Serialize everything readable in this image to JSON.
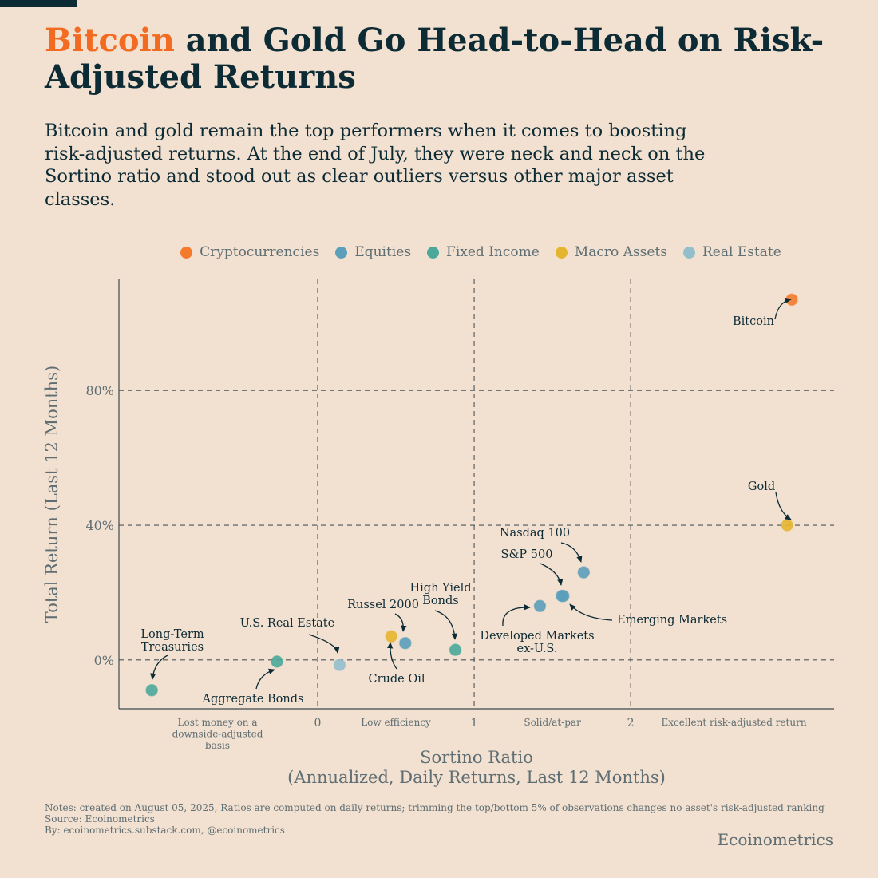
{
  "header": {
    "title_highlight": "Bitcoin",
    "title_rest": " and Gold Go Head-to-Head on Risk-Adjusted Returns",
    "subtitle": "Bitcoin and gold remain the top performers when it comes to boosting risk-adjusted returns. At the end of July, they were neck and neck on the Sortino ratio and stood out as clear outliers versus other major asset classes."
  },
  "legend": [
    {
      "label": "Cryptocurrencies",
      "color": "#f57b2c"
    },
    {
      "label": "Equities",
      "color": "#5b9fba"
    },
    {
      "label": "Fixed Income",
      "color": "#4aa99a"
    },
    {
      "label": "Macro Assets",
      "color": "#e6b52e"
    },
    {
      "label": "Real Estate",
      "color": "#93bfcc"
    }
  ],
  "chart_data": {
    "type": "scatter",
    "xlabel_line1": "Sortino Ratio",
    "xlabel_line2": "(Annualized, Daily Returns, Last 12 Months)",
    "ylabel": "Total Return (Last 12 Months)",
    "xlim": [
      -1.27,
      3.3
    ],
    "ylim": [
      -14.5,
      113
    ],
    "x_ticks": [
      {
        "value": 0,
        "label": "0"
      },
      {
        "value": 1,
        "label": "1"
      },
      {
        "value": 2,
        "label": "2"
      }
    ],
    "y_ticks": [
      {
        "value": 0,
        "label": "0%"
      },
      {
        "value": 40,
        "label": "40%"
      },
      {
        "value": 80,
        "label": "80%"
      }
    ],
    "zones": [
      {
        "x": -0.64,
        "label": "Lost money on a downside-adjusted basis",
        "lines": [
          "Lost money on a",
          "downside-adjusted",
          "basis"
        ]
      },
      {
        "x": 0.5,
        "label": "Low efficiency",
        "lines": [
          "Low efficiency"
        ]
      },
      {
        "x": 1.5,
        "label": "Solid/at-par",
        "lines": [
          "Solid/at-par"
        ]
      },
      {
        "x": 2.66,
        "label": "Excellent risk-adjusted return",
        "lines": [
          "Excellent risk-adjusted return"
        ]
      }
    ],
    "points": [
      {
        "name": "Bitcoin",
        "x": 3.03,
        "y": 107,
        "category": "Cryptocurrencies",
        "label_lines": [
          "Bitcoin"
        ]
      },
      {
        "name": "Gold",
        "x": 3.0,
        "y": 40,
        "category": "Macro Assets",
        "label_lines": [
          "Gold"
        ]
      },
      {
        "name": "Nasdaq 100",
        "x": 1.7,
        "y": 26,
        "category": "Equities",
        "label_lines": [
          "Nasdaq 100"
        ]
      },
      {
        "name": "S&P 500",
        "x": 1.57,
        "y": 19,
        "category": "Equities",
        "label_lines": [
          "S&P 500"
        ]
      },
      {
        "name": "Emerging Markets",
        "x": 1.56,
        "y": 19,
        "category": "Equities",
        "label_lines": [
          "Emerging Markets"
        ]
      },
      {
        "name": "Developed Markets ex-U.S.",
        "x": 1.42,
        "y": 16,
        "category": "Equities",
        "label_lines": [
          "Developed Markets",
          "ex-U.S."
        ]
      },
      {
        "name": "High Yield Bonds",
        "x": 0.88,
        "y": 3,
        "category": "Fixed Income",
        "label_lines": [
          "High Yield",
          "Bonds"
        ]
      },
      {
        "name": "Russel 2000",
        "x": 0.56,
        "y": 5,
        "category": "Equities",
        "label_lines": [
          "Russel 2000"
        ]
      },
      {
        "name": "Crude Oil",
        "x": 0.47,
        "y": 7,
        "category": "Macro Assets",
        "label_lines": [
          "Crude Oil"
        ]
      },
      {
        "name": "U.S. Real Estate",
        "x": 0.14,
        "y": -1.5,
        "category": "Real Estate",
        "label_lines": [
          "U.S. Real Estate"
        ]
      },
      {
        "name": "Aggregate Bonds",
        "x": -0.26,
        "y": -0.5,
        "category": "Fixed Income",
        "label_lines": [
          "Aggregate Bonds"
        ]
      },
      {
        "name": "Long-Term Treasuries",
        "x": -1.06,
        "y": -9,
        "category": "Fixed Income",
        "label_lines": [
          "Long-Term",
          "Treasuries"
        ]
      }
    ]
  },
  "footer": {
    "notes": "Notes: created on August 05, 2025, Ratios are computed on daily returns; trimming the top/bottom 5% of observations changes no asset's risk-adjusted ranking",
    "source": "Source: Ecoinometrics",
    "by": "By: ecoinometrics.substack.com, @ecoinometrics",
    "brand": "Ecoinometrics"
  }
}
